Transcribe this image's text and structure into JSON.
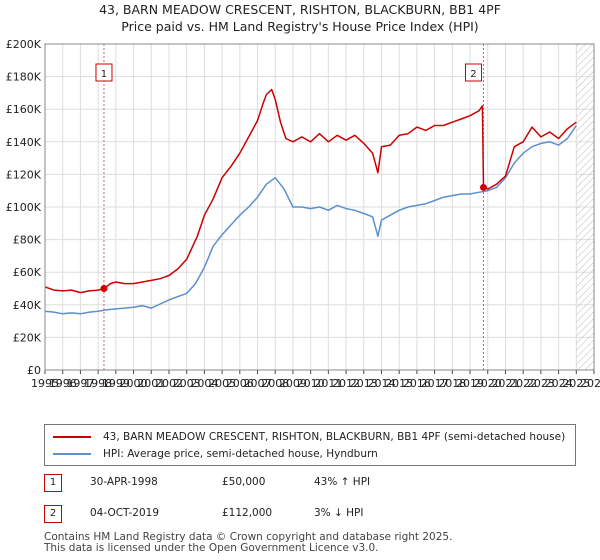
{
  "chart_data": {
    "type": "line",
    "title": "43, BARN MEADOW CRESCENT, RISHTON, BLACKBURN, BB1 4PF",
    "subtitle": "Price paid vs. HM Land Registry's House Price Index (HPI)",
    "xlabel": "",
    "ylabel": "",
    "xlim": [
      1995,
      2026
    ],
    "ylim": [
      0,
      200000
    ],
    "y_ticks": [
      0,
      20000,
      40000,
      60000,
      80000,
      100000,
      120000,
      140000,
      160000,
      180000,
      200000
    ],
    "y_tick_labels": [
      "£0",
      "£20K",
      "£40K",
      "£60K",
      "£80K",
      "£100K",
      "£120K",
      "£140K",
      "£160K",
      "£180K",
      "£200K"
    ],
    "x_tick_labels": [
      "1995",
      "1996",
      "1997",
      "1998",
      "1999",
      "2000",
      "2001",
      "2002",
      "2003",
      "2004",
      "2005",
      "2006",
      "2007",
      "2008",
      "2009",
      "2010",
      "2011",
      "2012",
      "2013",
      "2014",
      "2015",
      "2016",
      "2017",
      "2018",
      "2019",
      "2020",
      "2021",
      "2022",
      "2023",
      "2024",
      "2025",
      "2026"
    ],
    "grid": true,
    "series": [
      {
        "name": "43, BARN MEADOW CRESCENT, RISHTON, BLACKBURN, BB1 4PF (semi-detached house)",
        "color": "#cc0000",
        "x": [
          1995.0,
          1995.5,
          1996.0,
          1996.5,
          1997.0,
          1997.5,
          1998.0,
          1998.33,
          1998.7,
          1999.0,
          1999.5,
          2000.0,
          2000.5,
          2001.0,
          2001.5,
          2002.0,
          2002.5,
          2003.0,
          2003.3,
          2003.6,
          2004.0,
          2004.5,
          2005.0,
          2005.5,
          2006.0,
          2006.5,
          2007.0,
          2007.3,
          2007.5,
          2007.8,
          2008.0,
          2008.3,
          2008.6,
          2009.0,
          2009.5,
          2010.0,
          2010.5,
          2011.0,
          2011.5,
          2012.0,
          2012.5,
          2013.0,
          2013.5,
          2013.8,
          2014.0,
          2014.5,
          2015.0,
          2015.5,
          2016.0,
          2016.5,
          2017.0,
          2017.5,
          2018.0,
          2018.5,
          2019.0,
          2019.5,
          2019.7,
          2019.76,
          2020.0,
          2020.5,
          2021.0,
          2021.5,
          2022.0,
          2022.5,
          2023.0,
          2023.5,
          2024.0,
          2024.5,
          2025.0
        ],
        "values": [
          51000,
          49000,
          48500,
          49000,
          47500,
          48500,
          49000,
          50000,
          53000,
          54000,
          53000,
          53000,
          54000,
          55000,
          56000,
          58000,
          62000,
          68000,
          75000,
          82000,
          95000,
          105000,
          118000,
          125000,
          133000,
          143000,
          153000,
          163000,
          169000,
          172000,
          166000,
          152000,
          142000,
          140000,
          143000,
          140000,
          145000,
          140000,
          144000,
          141000,
          144000,
          139000,
          133000,
          121000,
          137000,
          138000,
          144000,
          145000,
          149000,
          147000,
          150000,
          150000,
          152000,
          154000,
          156000,
          159000,
          162000,
          112000,
          111000,
          114000,
          119000,
          137000,
          140000,
          149000,
          143000,
          146000,
          142000,
          148000,
          152000
        ]
      },
      {
        "name": "HPI: Average price, semi-detached house, Hyndburn",
        "color": "#5b8fd0",
        "x": [
          1995.0,
          1995.5,
          1996.0,
          1996.5,
          1997.0,
          1997.5,
          1998.0,
          1998.5,
          1999.0,
          1999.5,
          2000.0,
          2000.5,
          2001.0,
          2001.5,
          2002.0,
          2002.5,
          2003.0,
          2003.5,
          2004.0,
          2004.5,
          2005.0,
          2005.5,
          2006.0,
          2006.5,
          2007.0,
          2007.5,
          2008.0,
          2008.5,
          2009.0,
          2009.5,
          2010.0,
          2010.5,
          2011.0,
          2011.5,
          2012.0,
          2012.5,
          2013.0,
          2013.5,
          2013.8,
          2014.0,
          2014.5,
          2015.0,
          2015.5,
          2016.0,
          2016.5,
          2017.0,
          2017.5,
          2018.0,
          2018.5,
          2019.0,
          2019.5,
          2020.0,
          2020.5,
          2021.0,
          2021.5,
          2022.0,
          2022.5,
          2023.0,
          2023.5,
          2024.0,
          2024.5,
          2025.0
        ],
        "values": [
          36000,
          35500,
          34500,
          35000,
          34500,
          35500,
          36000,
          37000,
          37500,
          38000,
          38500,
          39500,
          38000,
          40500,
          43000,
          45000,
          47000,
          53000,
          63000,
          76000,
          83000,
          89000,
          95000,
          100000,
          106000,
          114000,
          118000,
          111000,
          100000,
          100000,
          99000,
          100000,
          98000,
          101000,
          99000,
          98000,
          96000,
          94000,
          82000,
          92000,
          95000,
          98000,
          100000,
          101000,
          102000,
          104000,
          106000,
          107000,
          108000,
          108000,
          109000,
          110000,
          112000,
          118000,
          127000,
          133000,
          137000,
          139000,
          140000,
          138000,
          142000,
          150000
        ]
      }
    ],
    "annotations": [
      {
        "label": "1",
        "x": 1998.33,
        "y": 50000
      },
      {
        "label": "2",
        "x": 2019.76,
        "y": 112000
      }
    ],
    "hatch_from": 2025.0
  },
  "legend": {
    "red_label": "43, BARN MEADOW CRESCENT, RISHTON, BLACKBURN, BB1 4PF (semi-detached house)",
    "blue_label": "HPI: Average price, semi-detached house, Hyndburn"
  },
  "sales": [
    {
      "num": "1",
      "date": "30-APR-1998",
      "price": "£50,000",
      "hpi": "43% ↑ HPI"
    },
    {
      "num": "2",
      "date": "04-OCT-2019",
      "price": "£112,000",
      "hpi": "3% ↓ HPI"
    }
  ],
  "footer": {
    "line1": "Contains HM Land Registry data © Crown copyright and database right 2025.",
    "line2": "This data is licensed under the Open Government Licence v3.0."
  },
  "colors": {
    "red": "#cc0000",
    "blue": "#5b8fd0",
    "grid": "#dddddd",
    "plot_bg": "#ffffff"
  }
}
